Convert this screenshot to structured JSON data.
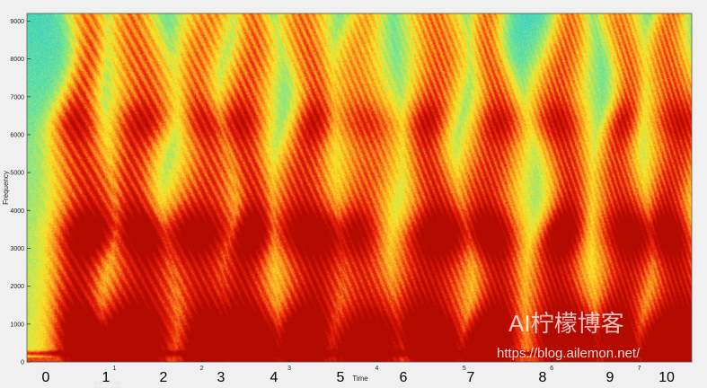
{
  "chart_data": {
    "type": "heatmap",
    "title": "",
    "xlabel": "Time",
    "ylabel": "Frequency",
    "ylim": [
      0,
      9200
    ],
    "xlim": [
      0,
      7.6
    ],
    "x_ticks": [
      "1",
      "2",
      "3",
      "4",
      "5",
      "6",
      "7"
    ],
    "y_ticks": [
      "0",
      "1000",
      "2000",
      "3000",
      "4000",
      "5000",
      "6000",
      "7000",
      "8000",
      "9000"
    ],
    "grid": false,
    "colormap": [
      "#1e64dc",
      "#23c8dc",
      "#7ae68c",
      "#fae628",
      "#fa8c1e",
      "#e61e0a",
      "#b40a00"
    ],
    "segment_labels": [
      "0",
      "1",
      "2",
      "3",
      "4",
      "5",
      "6",
      "7",
      "8",
      "9",
      "10"
    ]
  },
  "watermark": {
    "title": "AI柠檬博客",
    "url": "https://blog.ailemon.net/"
  }
}
